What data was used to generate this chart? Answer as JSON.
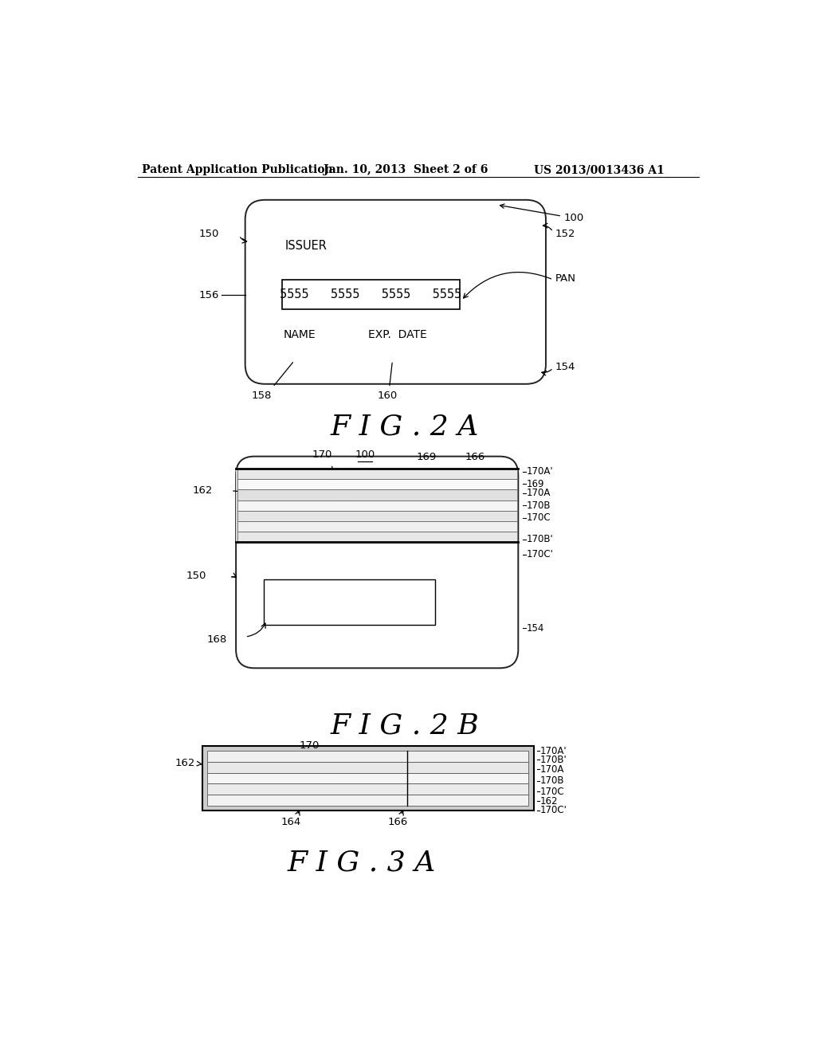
{
  "bg_color": "#ffffff",
  "header_left": "Patent Application Publication",
  "header_mid": "Jan. 10, 2013  Sheet 2 of 6",
  "header_right": "US 2013/0013436 A1",
  "fig2a_label": "F I G . 2 A",
  "fig2b_label": "F I G . 2 B",
  "fig3a_label": "F I G . 3 A",
  "card_line_color": "#222222",
  "card_lw": 1.4,
  "label_fontsize": 9.5,
  "caption_fontsize": 26
}
